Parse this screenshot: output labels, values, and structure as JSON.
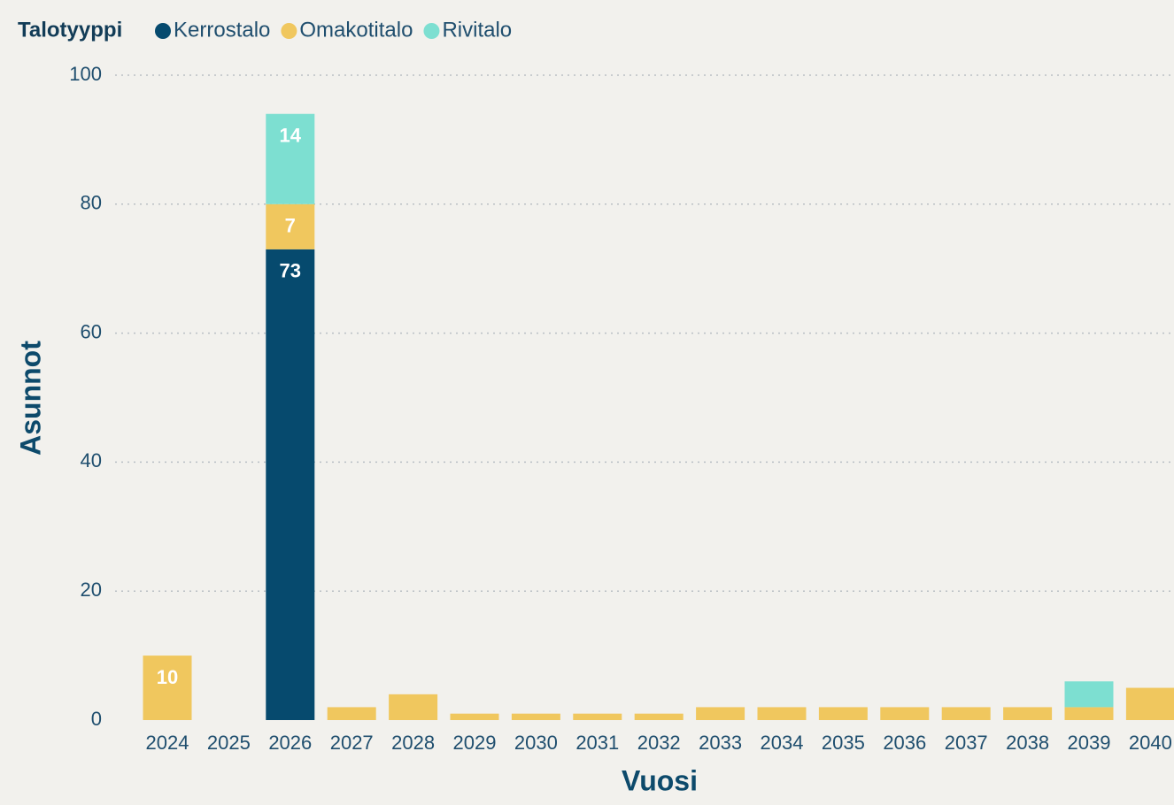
{
  "chart_data": {
    "type": "stacked-bar",
    "legend_title": "Talotyyppi",
    "x_label": "Vuosi",
    "y_label": "Asunnot",
    "categories": [
      "2024",
      "2025",
      "2026",
      "2027",
      "2028",
      "2029",
      "2030",
      "2031",
      "2032",
      "2033",
      "2034",
      "2035",
      "2036",
      "2037",
      "2038",
      "2039",
      "2040"
    ],
    "series": [
      {
        "name": "Kerrostalo",
        "color": "#064a6e",
        "values": [
          null,
          null,
          73,
          null,
          null,
          null,
          null,
          null,
          null,
          null,
          null,
          null,
          null,
          null,
          null,
          null,
          null
        ]
      },
      {
        "name": "Omakotitalo",
        "color": "#f0c75e",
        "values": [
          10,
          null,
          7,
          2,
          4,
          1,
          1,
          1,
          1,
          2,
          2,
          2,
          2,
          2,
          2,
          2,
          5
        ]
      },
      {
        "name": "Rivitalo",
        "color": "#7ddfd1",
        "values": [
          null,
          null,
          14,
          null,
          null,
          null,
          null,
          null,
          null,
          null,
          null,
          null,
          null,
          null,
          null,
          4,
          null
        ]
      }
    ],
    "ylim": [
      0,
      100
    ],
    "yticks": [
      0,
      20,
      40,
      60,
      80,
      100
    ],
    "grid": true,
    "legend_position": "top-left"
  }
}
